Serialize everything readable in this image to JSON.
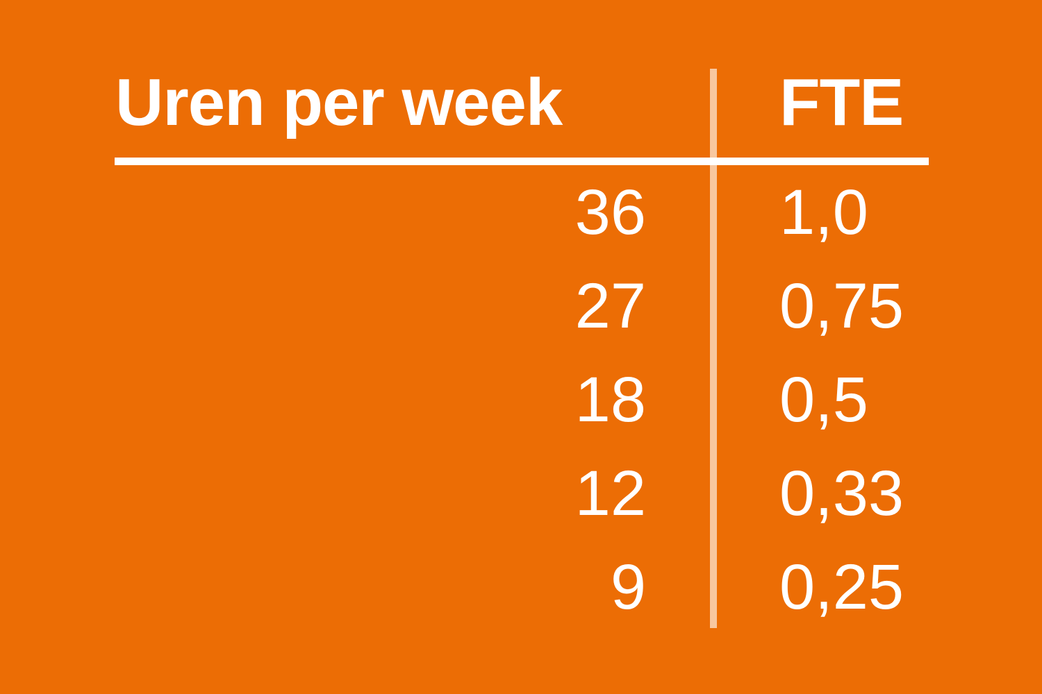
{
  "colors": {
    "background": "#EC6D05",
    "text": "#FFFFFF",
    "horizontal-rule": "#FFFFFF",
    "vertical-rule": "rgba(255,255,255,0.62)"
  },
  "chart_data": {
    "type": "table",
    "title": "",
    "columns": [
      "Uren per week",
      "FTE"
    ],
    "rows": [
      [
        "36",
        "1,0"
      ],
      [
        "27",
        "0,75"
      ],
      [
        "18",
        "0,5"
      ],
      [
        "12",
        "0,33"
      ],
      [
        "9",
        "0,25"
      ]
    ],
    "uren_values": [
      36,
      27,
      18,
      12,
      9
    ],
    "fte_values": [
      1.0,
      0.75,
      0.5,
      0.33,
      0.25
    ],
    "layout": {
      "header_underline": true,
      "column_divider": true,
      "uren_alignment": "right",
      "fte_alignment": "left"
    }
  }
}
